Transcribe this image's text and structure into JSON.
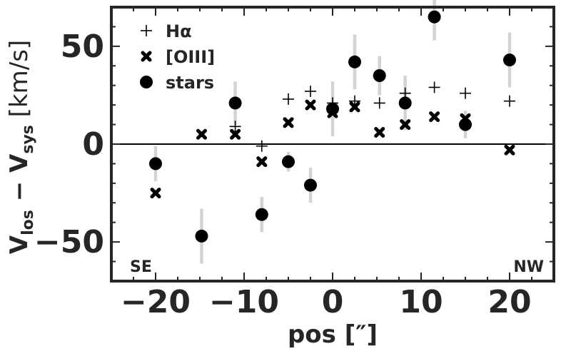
{
  "chart_data": {
    "type": "scatter",
    "xlabel": "pos [″]",
    "ylabel_main": "V",
    "ylabel_sub1": "los",
    "ylabel_mid": " − V",
    "ylabel_sub2": "sys",
    "ylabel_unit": " [km/s]",
    "xlim": [
      -25,
      25
    ],
    "ylim": [
      -70,
      70
    ],
    "xticks": [
      -20,
      -10,
      0,
      10,
      20
    ],
    "xtick_labels": [
      "−20",
      "−10",
      "0",
      "10",
      "20"
    ],
    "yticks": [
      -50,
      0,
      50
    ],
    "ytick_labels": [
      "−50",
      "0",
      "50"
    ],
    "hline": 0,
    "grid": false,
    "legend_position": "top-left",
    "annotations": [
      {
        "text": "SE",
        "position": "bottom-left"
      },
      {
        "text": "NW",
        "position": "bottom-right"
      }
    ],
    "series": [
      {
        "name": "Hα",
        "marker": "plus",
        "points": [
          {
            "x": -11.0,
            "y": 9
          },
          {
            "x": -8.0,
            "y": -1
          },
          {
            "x": -5.0,
            "y": 23
          },
          {
            "x": -2.5,
            "y": 27
          },
          {
            "x": 0.0,
            "y": 21
          },
          {
            "x": 2.5,
            "y": 22
          },
          {
            "x": 5.3,
            "y": 21
          },
          {
            "x": 8.2,
            "y": 26
          },
          {
            "x": 11.5,
            "y": 29
          },
          {
            "x": 15.0,
            "y": 26
          },
          {
            "x": 20.0,
            "y": 22
          }
        ]
      },
      {
        "name": "[OIII]",
        "marker": "x",
        "points": [
          {
            "x": -20.0,
            "y": -25
          },
          {
            "x": -14.8,
            "y": 5
          },
          {
            "x": -11.0,
            "y": 5
          },
          {
            "x": -8.0,
            "y": -9
          },
          {
            "x": -5.0,
            "y": 11
          },
          {
            "x": -2.5,
            "y": 20
          },
          {
            "x": 0.0,
            "y": 16
          },
          {
            "x": 2.5,
            "y": 19
          },
          {
            "x": 5.3,
            "y": 6
          },
          {
            "x": 8.2,
            "y": 10
          },
          {
            "x": 11.5,
            "y": 14
          },
          {
            "x": 15.0,
            "y": 13
          },
          {
            "x": 20.0,
            "y": -3
          }
        ]
      },
      {
        "name": "stars",
        "marker": "circle",
        "points": [
          {
            "x": -20.0,
            "y": -10,
            "err": 9
          },
          {
            "x": -14.8,
            "y": -47,
            "err": 14
          },
          {
            "x": -11.0,
            "y": 21,
            "err": 11
          },
          {
            "x": -8.0,
            "y": -36,
            "err": 9
          },
          {
            "x": -5.0,
            "y": -9,
            "err": 5
          },
          {
            "x": -2.5,
            "y": -21,
            "err": 9
          },
          {
            "x": 0.0,
            "y": 18,
            "err": 14
          },
          {
            "x": 2.5,
            "y": 42,
            "err": 14
          },
          {
            "x": 5.3,
            "y": 35,
            "err": 10
          },
          {
            "x": 8.2,
            "y": 21,
            "err": 14
          },
          {
            "x": 11.5,
            "y": 65,
            "err": 12
          },
          {
            "x": 15.0,
            "y": 10,
            "err": 7
          },
          {
            "x": 20.0,
            "y": 43,
            "err": 14
          }
        ]
      }
    ]
  }
}
